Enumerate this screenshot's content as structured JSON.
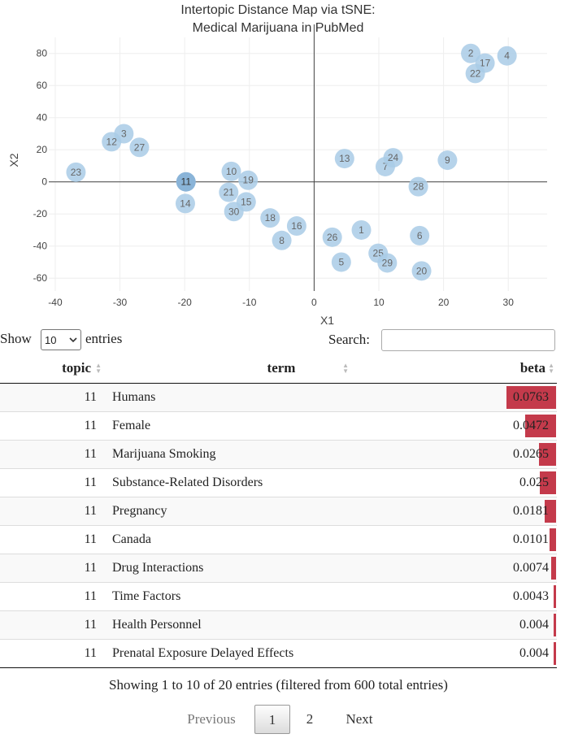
{
  "chart_data": {
    "type": "scatter",
    "title_lines": [
      "Intertopic Distance Map via tSNE:",
      "Medical Marijuana in PubMed"
    ],
    "xlabel": "X1",
    "ylabel": "X2",
    "xlim": [
      -41,
      36
    ],
    "ylim": [
      -68,
      90
    ],
    "xticks": [
      -40,
      -30,
      -20,
      -10,
      0,
      10,
      20,
      30
    ],
    "yticks": [
      -60,
      -40,
      -20,
      0,
      20,
      40,
      60,
      80
    ],
    "grid": true,
    "selected_topic": "11",
    "point_color": "#a9cbe6",
    "selected_point_color": "#8ab4d8",
    "label_color": "#666666",
    "points": [
      {
        "label": "1",
        "x": 7.3,
        "y": -30
      },
      {
        "label": "2",
        "x": 24.2,
        "y": 80
      },
      {
        "label": "3",
        "x": -29.4,
        "y": 30
      },
      {
        "label": "4",
        "x": 29.8,
        "y": 78.5
      },
      {
        "label": "5",
        "x": 4.2,
        "y": -50
      },
      {
        "label": "6",
        "x": 16.3,
        "y": -33.5
      },
      {
        "label": "7",
        "x": 11.0,
        "y": 9.5
      },
      {
        "label": "8",
        "x": -5.0,
        "y": -36.5
      },
      {
        "label": "9",
        "x": 20.6,
        "y": 13.5
      },
      {
        "label": "10",
        "x": -12.8,
        "y": 6.5
      },
      {
        "label": "11",
        "x": -19.8,
        "y": 0
      },
      {
        "label": "12",
        "x": -31.3,
        "y": 25
      },
      {
        "label": "13",
        "x": 4.7,
        "y": 14.5
      },
      {
        "label": "14",
        "x": -19.9,
        "y": -13.5
      },
      {
        "label": "15",
        "x": -10.5,
        "y": -12.5
      },
      {
        "label": "16",
        "x": -2.7,
        "y": -27.5
      },
      {
        "label": "17",
        "x": 26.4,
        "y": 74
      },
      {
        "label": "18",
        "x": -6.8,
        "y": -22.5
      },
      {
        "label": "19",
        "x": -10.2,
        "y": 1
      },
      {
        "label": "20",
        "x": 16.6,
        "y": -55.5
      },
      {
        "label": "21",
        "x": -13.2,
        "y": -6.5
      },
      {
        "label": "22",
        "x": 24.9,
        "y": 67.5
      },
      {
        "label": "23",
        "x": -36.8,
        "y": 6
      },
      {
        "label": "24",
        "x": 12.2,
        "y": 15
      },
      {
        "label": "25",
        "x": 9.9,
        "y": -44.5
      },
      {
        "label": "26",
        "x": 2.8,
        "y": -34.5
      },
      {
        "label": "27",
        "x": -27.0,
        "y": 21.5
      },
      {
        "label": "28",
        "x": 16.1,
        "y": -3
      },
      {
        "label": "29",
        "x": 11.3,
        "y": -50.5
      },
      {
        "label": "30",
        "x": -12.4,
        "y": -18.5
      }
    ]
  },
  "table": {
    "length_label_before": "Show",
    "length_value": "10",
    "length_label_after": "entries",
    "search_label": "Search:",
    "search_value": "",
    "columns": [
      "topic",
      "term",
      "beta"
    ],
    "bar_color": "#c43a4b",
    "bar_max": 0.0763,
    "rows": [
      {
        "topic": "11",
        "term": "Humans",
        "beta": "0.0763"
      },
      {
        "topic": "11",
        "term": "Female",
        "beta": "0.0472"
      },
      {
        "topic": "11",
        "term": "Marijuana Smoking",
        "beta": "0.0265"
      },
      {
        "topic": "11",
        "term": "Substance-Related Disorders",
        "beta": "0.025"
      },
      {
        "topic": "11",
        "term": "Pregnancy",
        "beta": "0.0181"
      },
      {
        "topic": "11",
        "term": "Canada",
        "beta": "0.0101"
      },
      {
        "topic": "11",
        "term": "Drug Interactions",
        "beta": "0.0074"
      },
      {
        "topic": "11",
        "term": "Time Factors",
        "beta": "0.0043"
      },
      {
        "topic": "11",
        "term": "Health Personnel",
        "beta": "0.004"
      },
      {
        "topic": "11",
        "term": "Prenatal Exposure Delayed Effects",
        "beta": "0.004"
      }
    ],
    "info": "Showing 1 to 10 of 20 entries (filtered from 600 total entries)",
    "pagination": {
      "previous": "Previous",
      "current": "1",
      "page2": "2",
      "next": "Next"
    }
  }
}
